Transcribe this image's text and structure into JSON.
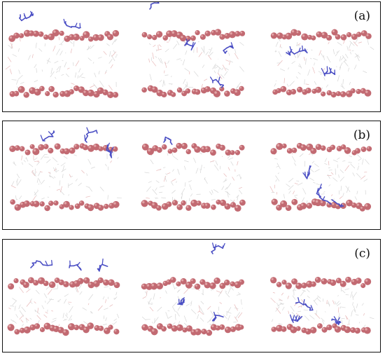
{
  "figure": {
    "panels": [
      {
        "id": "a",
        "label": "(a)"
      },
      {
        "id": "b",
        "label": "(b)"
      },
      {
        "id": "c",
        "label": "(c)"
      }
    ],
    "colors": {
      "phosphate_sphere": "#c26a72",
      "phosphate_highlight": "#e9b3b3",
      "lipid_tail": "#d6d6d6",
      "lipid_pink": "#e8b8b8",
      "peptide": "#4b4fc4",
      "frame": "#111111"
    }
  }
}
